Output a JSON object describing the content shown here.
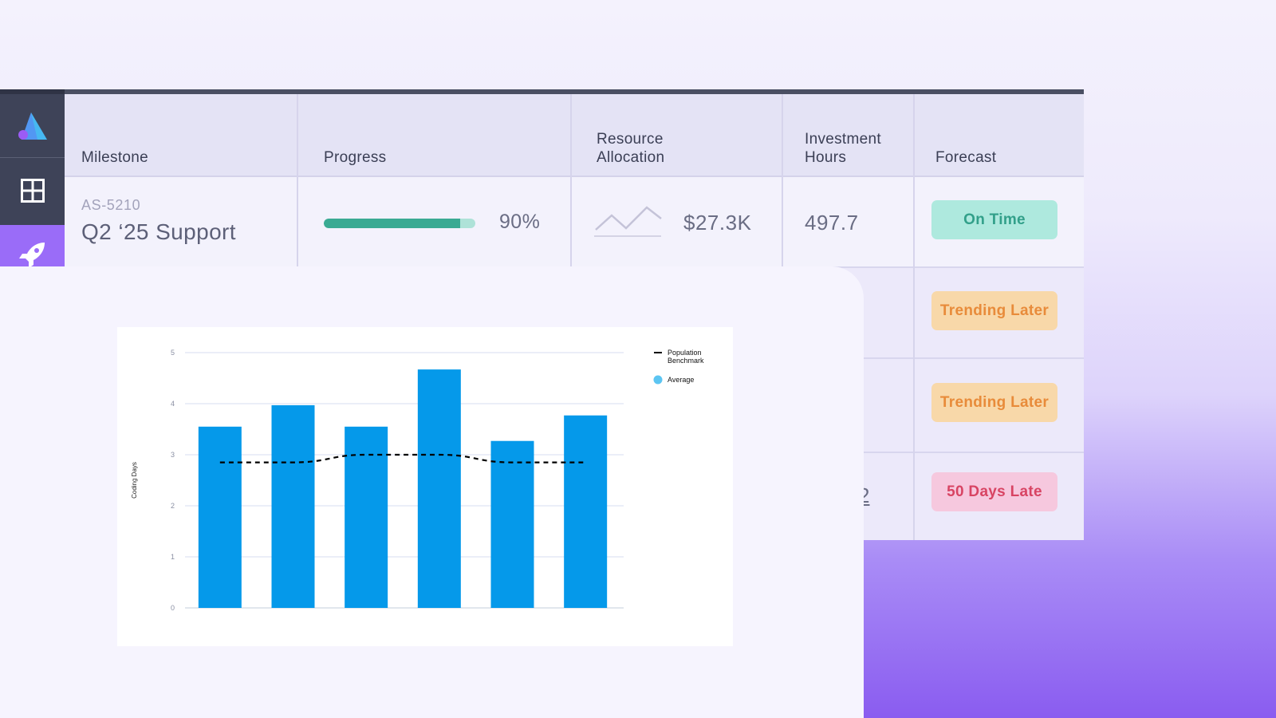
{
  "table": {
    "headers": {
      "milestone": "Milestone",
      "progress": "Progress",
      "resource_line1": "Resource",
      "resource_line2": "Allocation",
      "hours_line1": "Investment",
      "hours_line2": "Hours",
      "forecast": "Forecast"
    },
    "rows": [
      {
        "id": "AS-5210",
        "name": "Q2 ‘25 Support",
        "progress": "90%",
        "progress_fraction": 0.9,
        "allocation": "$27.3K",
        "hours": "497.7",
        "forecast": "On Time"
      },
      {
        "forecast": "Trending Later"
      },
      {
        "forecast": "Trending Later"
      },
      {
        "hours_fragment": "2",
        "forecast": "50 Days Late"
      }
    ]
  },
  "sidebar": {
    "icons": [
      "logo-icon",
      "grid-icon",
      "rocket-icon"
    ]
  },
  "colors": {
    "bar": "#0599ea",
    "benchmark": "#000000",
    "on_time": "#32a08a",
    "trending": "#e88b3a",
    "late": "#d84463",
    "progress": "#3aaa93"
  },
  "chart_data": {
    "type": "bar",
    "categories": [
      "",
      "",
      "",
      "",
      "",
      ""
    ],
    "series": [
      {
        "name": "Average",
        "values": [
          3.55,
          3.97,
          3.55,
          4.67,
          3.27,
          3.77
        ]
      },
      {
        "name": "Population Benchmark",
        "values": [
          2.85,
          2.85,
          3.0,
          3.0,
          2.85,
          2.85
        ]
      }
    ],
    "legend": {
      "benchmark_line1": "Population",
      "benchmark_line2": "Benchmark",
      "average": "Average"
    },
    "ylabel": "Coding Days",
    "ylim": [
      0,
      5
    ],
    "yticks": [
      "0",
      "1",
      "2",
      "3",
      "4",
      "5"
    ],
    "grid": true,
    "legend_position": "top-right"
  }
}
